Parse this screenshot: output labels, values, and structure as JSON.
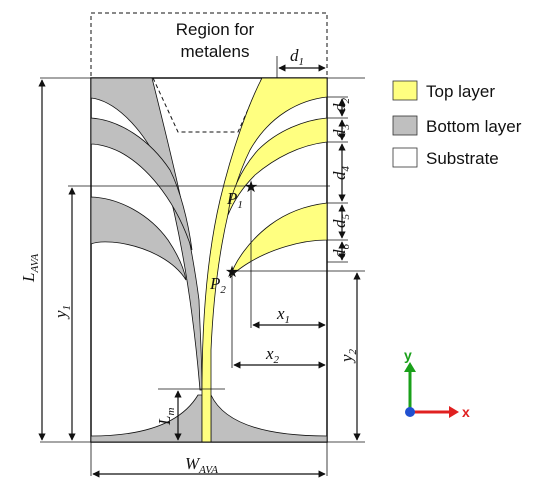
{
  "title_region": {
    "line1": "Region for",
    "line2": "metalens"
  },
  "legend": [
    {
      "label": "Top layer",
      "color": "#ffff80"
    },
    {
      "label": "Bottom layer",
      "color": "#bfbfbf"
    },
    {
      "label": "Substrate",
      "color": "#ffffff"
    }
  ],
  "labels": {
    "d1": {
      "base": "d",
      "sub": "1"
    },
    "d2": {
      "base": "d",
      "sub": "2"
    },
    "d3": {
      "base": "d",
      "sub": "3"
    },
    "d4": {
      "base": "d",
      "sub": "4"
    },
    "d5": {
      "base": "d",
      "sub": "5"
    },
    "d6": {
      "base": "d",
      "sub": "6"
    },
    "P1": {
      "base": "P",
      "sub": "1"
    },
    "P2": {
      "base": "P",
      "sub": "2"
    },
    "x1": {
      "base": "x",
      "sub": "1"
    },
    "x2": {
      "base": "x",
      "sub": "2"
    },
    "y1": {
      "base": "y",
      "sub": "1"
    },
    "y2": {
      "base": "y",
      "sub": "2"
    },
    "L_AVA": {
      "base": "L",
      "sub": "AVA"
    },
    "W_AVA": {
      "base": "W",
      "sub": "AVA"
    },
    "Lm": {
      "base": "L",
      "sub": "m"
    }
  },
  "axes": {
    "y": "y",
    "x": "x",
    "y_color": "#1aa01a",
    "x_color": "#e02020",
    "z_color": "#2050d0"
  },
  "colors": {
    "top": "#ffff80",
    "bottom": "#bfbfbf",
    "outline": "#111111"
  }
}
